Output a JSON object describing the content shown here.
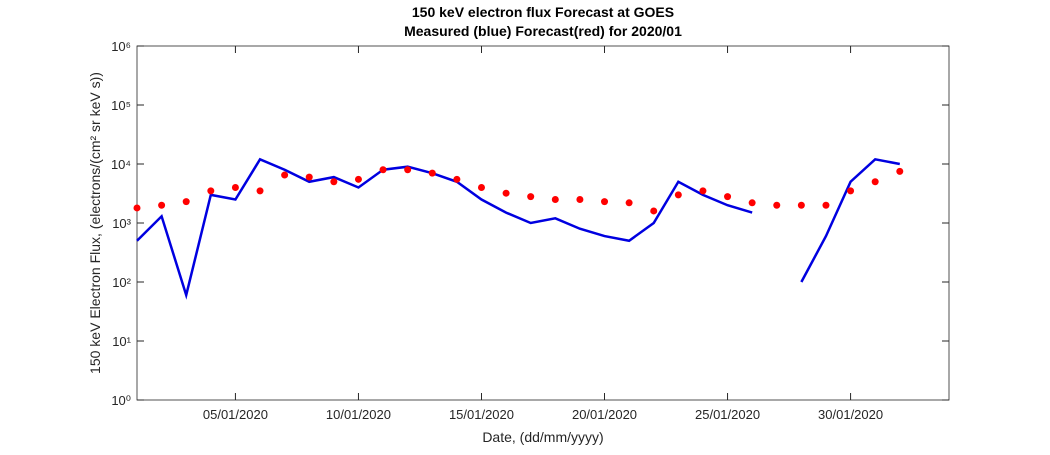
{
  "chart_data": {
    "type": "line",
    "title": "150 keV electron flux Forecast at GOES",
    "subtitle": "Measured (blue) Forecast(red) for 2020/01",
    "x_label": "Date, (dd/mm/yyyy)",
    "y_label": "150 keV Electron Flux, (electrons/(cm² sr keV s))",
    "log_y": true,
    "xlim": [
      "2020-01-01",
      "2020-02-03"
    ],
    "xticks": [
      {
        "value": "2020-01-05",
        "label": "05/01/2020"
      },
      {
        "value": "2020-01-10",
        "label": "10/01/2020"
      },
      {
        "value": "2020-01-15",
        "label": "15/01/2020"
      },
      {
        "value": "2020-01-20",
        "label": "20/01/2020"
      },
      {
        "value": "2020-01-25",
        "label": "25/01/2020"
      },
      {
        "value": "2020-01-30",
        "label": "30/01/2020"
      }
    ],
    "ylim": [
      1,
      1000000
    ],
    "yticks": [
      {
        "value": 1,
        "label": "10⁰"
      },
      {
        "value": 10,
        "label": "10¹"
      },
      {
        "value": 100,
        "label": "10²"
      },
      {
        "value": 1000,
        "label": "10³"
      },
      {
        "value": 10000,
        "label": "10⁴"
      },
      {
        "value": 100000,
        "label": "10⁵"
      },
      {
        "value": 1000000,
        "label": "10⁶"
      }
    ],
    "x": [
      "2020-01-01",
      "2020-01-02",
      "2020-01-03",
      "2020-01-04",
      "2020-01-05",
      "2020-01-06",
      "2020-01-07",
      "2020-01-08",
      "2020-01-09",
      "2020-01-10",
      "2020-01-11",
      "2020-01-12",
      "2020-01-13",
      "2020-01-14",
      "2020-01-15",
      "2020-01-16",
      "2020-01-17",
      "2020-01-18",
      "2020-01-19",
      "2020-01-20",
      "2020-01-21",
      "2020-01-22",
      "2020-01-23",
      "2020-01-24",
      "2020-01-25",
      "2020-01-26",
      "2020-01-27",
      "2020-01-28",
      "2020-01-29",
      "2020-01-30",
      "2020-01-31",
      "2020-02-01"
    ],
    "series": [
      {
        "color": "#0000e0",
        "style": "line",
        "values": [
          500,
          1300,
          60,
          3000,
          2500,
          12000,
          8000,
          5000,
          6000,
          4000,
          8000,
          9000,
          7000,
          5000,
          2500,
          1500,
          1000,
          1200,
          800,
          600,
          500,
          1000,
          5000,
          3000,
          2000,
          1500,
          null,
          100,
          600,
          5000,
          12000,
          10000
        ]
      },
      {
        "color": "#ff0000",
        "style": "dots",
        "values": [
          1800,
          2000,
          2300,
          3500,
          4000,
          3500,
          6500,
          6000,
          5000,
          5500,
          8000,
          8000,
          7000,
          5500,
          4000,
          3200,
          2800,
          2500,
          2500,
          2300,
          2200,
          1600,
          3000,
          3500,
          2800,
          2200,
          2000,
          2000,
          2000,
          3500,
          5000,
          7500
        ]
      }
    ]
  }
}
